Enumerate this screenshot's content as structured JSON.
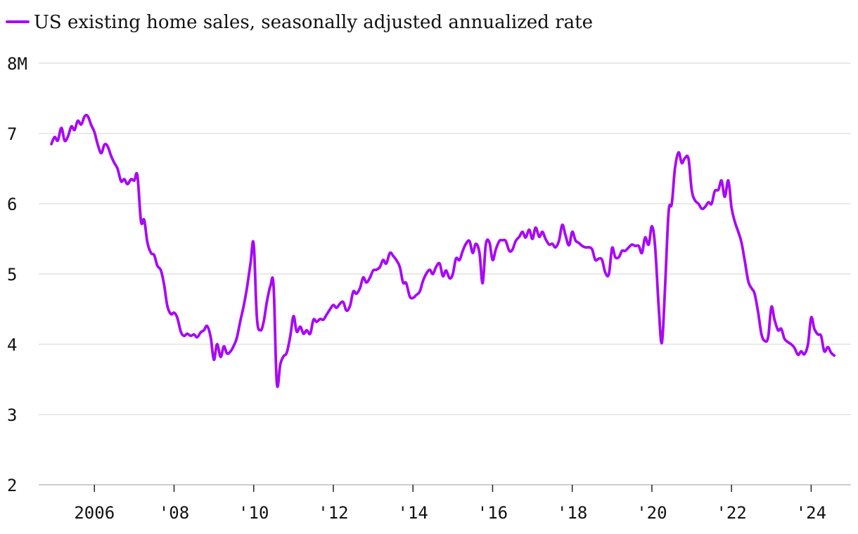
{
  "chart_data": {
    "type": "line",
    "legend": {
      "placement": "top-left"
    },
    "grid": true,
    "series": [
      {
        "name": "US existing home sales, seasonally adjusted annualized rate",
        "color": "#a709f5",
        "points": [
          [
            2004.92,
            6.85
          ],
          [
            2005.0,
            6.95
          ],
          [
            2005.08,
            6.9
          ],
          [
            2005.17,
            7.08
          ],
          [
            2005.25,
            6.9
          ],
          [
            2005.33,
            6.95
          ],
          [
            2005.42,
            7.1
          ],
          [
            2005.5,
            7.05
          ],
          [
            2005.58,
            7.18
          ],
          [
            2005.67,
            7.13
          ],
          [
            2005.75,
            7.24
          ],
          [
            2005.83,
            7.25
          ],
          [
            2005.92,
            7.12
          ],
          [
            2006.0,
            7.02
          ],
          [
            2006.08,
            6.85
          ],
          [
            2006.17,
            6.72
          ],
          [
            2006.25,
            6.84
          ],
          [
            2006.33,
            6.82
          ],
          [
            2006.42,
            6.68
          ],
          [
            2006.5,
            6.58
          ],
          [
            2006.58,
            6.5
          ],
          [
            2006.67,
            6.32
          ],
          [
            2006.75,
            6.35
          ],
          [
            2006.83,
            6.28
          ],
          [
            2006.92,
            6.35
          ],
          [
            2007.0,
            6.33
          ],
          [
            2007.08,
            6.4
          ],
          [
            2007.17,
            5.75
          ],
          [
            2007.25,
            5.77
          ],
          [
            2007.33,
            5.45
          ],
          [
            2007.42,
            5.3
          ],
          [
            2007.5,
            5.27
          ],
          [
            2007.58,
            5.12
          ],
          [
            2007.67,
            5.05
          ],
          [
            2007.75,
            4.85
          ],
          [
            2007.83,
            4.55
          ],
          [
            2007.92,
            4.43
          ],
          [
            2008.0,
            4.45
          ],
          [
            2008.08,
            4.38
          ],
          [
            2008.17,
            4.18
          ],
          [
            2008.25,
            4.12
          ],
          [
            2008.33,
            4.15
          ],
          [
            2008.42,
            4.12
          ],
          [
            2008.5,
            4.14
          ],
          [
            2008.58,
            4.1
          ],
          [
            2008.67,
            4.17
          ],
          [
            2008.75,
            4.2
          ],
          [
            2008.83,
            4.26
          ],
          [
            2008.92,
            4.1
          ],
          [
            2009.0,
            3.78
          ],
          [
            2009.08,
            4.0
          ],
          [
            2009.17,
            3.82
          ],
          [
            2009.25,
            3.97
          ],
          [
            2009.33,
            3.87
          ],
          [
            2009.42,
            3.9
          ],
          [
            2009.5,
            3.98
          ],
          [
            2009.58,
            4.1
          ],
          [
            2009.67,
            4.35
          ],
          [
            2009.75,
            4.55
          ],
          [
            2009.83,
            4.8
          ],
          [
            2009.92,
            5.15
          ],
          [
            2010.0,
            5.43
          ],
          [
            2010.08,
            4.38
          ],
          [
            2010.17,
            4.2
          ],
          [
            2010.25,
            4.32
          ],
          [
            2010.33,
            4.6
          ],
          [
            2010.42,
            4.83
          ],
          [
            2010.5,
            4.83
          ],
          [
            2010.58,
            3.45
          ],
          [
            2010.67,
            3.72
          ],
          [
            2010.75,
            3.83
          ],
          [
            2010.83,
            3.88
          ],
          [
            2010.92,
            4.12
          ],
          [
            2011.0,
            4.4
          ],
          [
            2011.08,
            4.18
          ],
          [
            2011.17,
            4.25
          ],
          [
            2011.25,
            4.15
          ],
          [
            2011.33,
            4.2
          ],
          [
            2011.42,
            4.15
          ],
          [
            2011.5,
            4.35
          ],
          [
            2011.58,
            4.32
          ],
          [
            2011.67,
            4.36
          ],
          [
            2011.75,
            4.35
          ],
          [
            2011.83,
            4.42
          ],
          [
            2011.92,
            4.5
          ],
          [
            2012.0,
            4.56
          ],
          [
            2012.08,
            4.52
          ],
          [
            2012.17,
            4.58
          ],
          [
            2012.25,
            4.6
          ],
          [
            2012.33,
            4.48
          ],
          [
            2012.42,
            4.55
          ],
          [
            2012.5,
            4.75
          ],
          [
            2012.58,
            4.72
          ],
          [
            2012.67,
            4.8
          ],
          [
            2012.75,
            4.95
          ],
          [
            2012.83,
            4.88
          ],
          [
            2012.92,
            4.95
          ],
          [
            2013.0,
            5.05
          ],
          [
            2013.08,
            5.06
          ],
          [
            2013.17,
            5.1
          ],
          [
            2013.25,
            5.2
          ],
          [
            2013.33,
            5.15
          ],
          [
            2013.42,
            5.3
          ],
          [
            2013.5,
            5.26
          ],
          [
            2013.58,
            5.2
          ],
          [
            2013.67,
            5.1
          ],
          [
            2013.75,
            4.88
          ],
          [
            2013.83,
            4.87
          ],
          [
            2013.92,
            4.68
          ],
          [
            2014.0,
            4.66
          ],
          [
            2014.08,
            4.7
          ],
          [
            2014.17,
            4.75
          ],
          [
            2014.25,
            4.9
          ],
          [
            2014.33,
            5.0
          ],
          [
            2014.42,
            5.06
          ],
          [
            2014.5,
            5.0
          ],
          [
            2014.58,
            5.1
          ],
          [
            2014.67,
            5.15
          ],
          [
            2014.75,
            4.97
          ],
          [
            2014.83,
            5.05
          ],
          [
            2014.92,
            4.94
          ],
          [
            2015.0,
            5.0
          ],
          [
            2015.08,
            5.22
          ],
          [
            2015.17,
            5.2
          ],
          [
            2015.25,
            5.33
          ],
          [
            2015.33,
            5.43
          ],
          [
            2015.42,
            5.47
          ],
          [
            2015.5,
            5.3
          ],
          [
            2015.58,
            5.43
          ],
          [
            2015.67,
            5.3
          ],
          [
            2015.75,
            4.87
          ],
          [
            2015.83,
            5.42
          ],
          [
            2015.92,
            5.45
          ],
          [
            2016.0,
            5.2
          ],
          [
            2016.08,
            5.35
          ],
          [
            2016.17,
            5.47
          ],
          [
            2016.25,
            5.48
          ],
          [
            2016.33,
            5.47
          ],
          [
            2016.42,
            5.33
          ],
          [
            2016.5,
            5.35
          ],
          [
            2016.58,
            5.47
          ],
          [
            2016.67,
            5.53
          ],
          [
            2016.75,
            5.6
          ],
          [
            2016.83,
            5.52
          ],
          [
            2016.92,
            5.63
          ],
          [
            2017.0,
            5.5
          ],
          [
            2017.08,
            5.66
          ],
          [
            2017.17,
            5.53
          ],
          [
            2017.25,
            5.6
          ],
          [
            2017.33,
            5.5
          ],
          [
            2017.42,
            5.42
          ],
          [
            2017.5,
            5.43
          ],
          [
            2017.58,
            5.38
          ],
          [
            2017.67,
            5.48
          ],
          [
            2017.75,
            5.7
          ],
          [
            2017.83,
            5.55
          ],
          [
            2017.92,
            5.41
          ],
          [
            2018.0,
            5.6
          ],
          [
            2018.08,
            5.48
          ],
          [
            2018.17,
            5.44
          ],
          [
            2018.25,
            5.4
          ],
          [
            2018.33,
            5.38
          ],
          [
            2018.42,
            5.38
          ],
          [
            2018.5,
            5.35
          ],
          [
            2018.58,
            5.2
          ],
          [
            2018.67,
            5.22
          ],
          [
            2018.75,
            5.2
          ],
          [
            2018.83,
            5.02
          ],
          [
            2018.92,
            5.0
          ],
          [
            2019.0,
            5.37
          ],
          [
            2019.08,
            5.24
          ],
          [
            2019.17,
            5.24
          ],
          [
            2019.25,
            5.33
          ],
          [
            2019.33,
            5.33
          ],
          [
            2019.42,
            5.38
          ],
          [
            2019.5,
            5.42
          ],
          [
            2019.58,
            5.4
          ],
          [
            2019.67,
            5.4
          ],
          [
            2019.75,
            5.3
          ],
          [
            2019.83,
            5.52
          ],
          [
            2019.92,
            5.42
          ],
          [
            2020.0,
            5.68
          ],
          [
            2020.08,
            5.4
          ],
          [
            2020.17,
            4.55
          ],
          [
            2020.25,
            4.02
          ],
          [
            2020.33,
            4.8
          ],
          [
            2020.42,
            5.88
          ],
          [
            2020.5,
            6.0
          ],
          [
            2020.58,
            6.5
          ],
          [
            2020.67,
            6.73
          ],
          [
            2020.75,
            6.58
          ],
          [
            2020.83,
            6.65
          ],
          [
            2020.92,
            6.64
          ],
          [
            2021.0,
            6.2
          ],
          [
            2021.08,
            6.05
          ],
          [
            2021.17,
            6.0
          ],
          [
            2021.25,
            5.93
          ],
          [
            2021.33,
            5.95
          ],
          [
            2021.42,
            6.02
          ],
          [
            2021.5,
            6.0
          ],
          [
            2021.58,
            6.18
          ],
          [
            2021.67,
            6.2
          ],
          [
            2021.75,
            6.33
          ],
          [
            2021.83,
            6.1
          ],
          [
            2021.92,
            6.33
          ],
          [
            2022.0,
            5.95
          ],
          [
            2022.08,
            5.75
          ],
          [
            2022.17,
            5.6
          ],
          [
            2022.25,
            5.45
          ],
          [
            2022.33,
            5.2
          ],
          [
            2022.42,
            4.9
          ],
          [
            2022.5,
            4.8
          ],
          [
            2022.58,
            4.72
          ],
          [
            2022.67,
            4.45
          ],
          [
            2022.75,
            4.15
          ],
          [
            2022.83,
            4.05
          ],
          [
            2022.92,
            4.1
          ],
          [
            2023.0,
            4.53
          ],
          [
            2023.08,
            4.35
          ],
          [
            2023.17,
            4.2
          ],
          [
            2023.25,
            4.22
          ],
          [
            2023.33,
            4.08
          ],
          [
            2023.42,
            4.03
          ],
          [
            2023.5,
            4.0
          ],
          [
            2023.58,
            3.95
          ],
          [
            2023.67,
            3.85
          ],
          [
            2023.75,
            3.9
          ],
          [
            2023.83,
            3.86
          ],
          [
            2023.92,
            4.0
          ],
          [
            2024.0,
            4.38
          ],
          [
            2024.08,
            4.22
          ],
          [
            2024.17,
            4.14
          ],
          [
            2024.25,
            4.12
          ],
          [
            2024.33,
            3.9
          ],
          [
            2024.42,
            3.96
          ],
          [
            2024.5,
            3.88
          ],
          [
            2024.58,
            3.84
          ]
        ]
      }
    ],
    "y_axis": {
      "ylim": [
        2,
        8
      ],
      "ticks": [
        {
          "value": 2,
          "label": "2"
        },
        {
          "value": 3,
          "label": "3"
        },
        {
          "value": 4,
          "label": "4"
        },
        {
          "value": 5,
          "label": "5"
        },
        {
          "value": 6,
          "label": "6"
        },
        {
          "value": 7,
          "label": "7"
        },
        {
          "value": 8,
          "label": "8M"
        }
      ]
    },
    "x_axis": {
      "xlim": [
        2004.6,
        2025.0
      ],
      "ticks": [
        {
          "value": 2006,
          "label": "2006"
        },
        {
          "value": 2008,
          "label": "'08"
        },
        {
          "value": 2010,
          "label": "'10"
        },
        {
          "value": 2012,
          "label": "'12"
        },
        {
          "value": 2014,
          "label": "'14"
        },
        {
          "value": 2016,
          "label": "'16"
        },
        {
          "value": 2018,
          "label": "'18"
        },
        {
          "value": 2020,
          "label": "'20"
        },
        {
          "value": 2022,
          "label": "'22"
        },
        {
          "value": 2024,
          "label": "'24"
        }
      ]
    }
  }
}
